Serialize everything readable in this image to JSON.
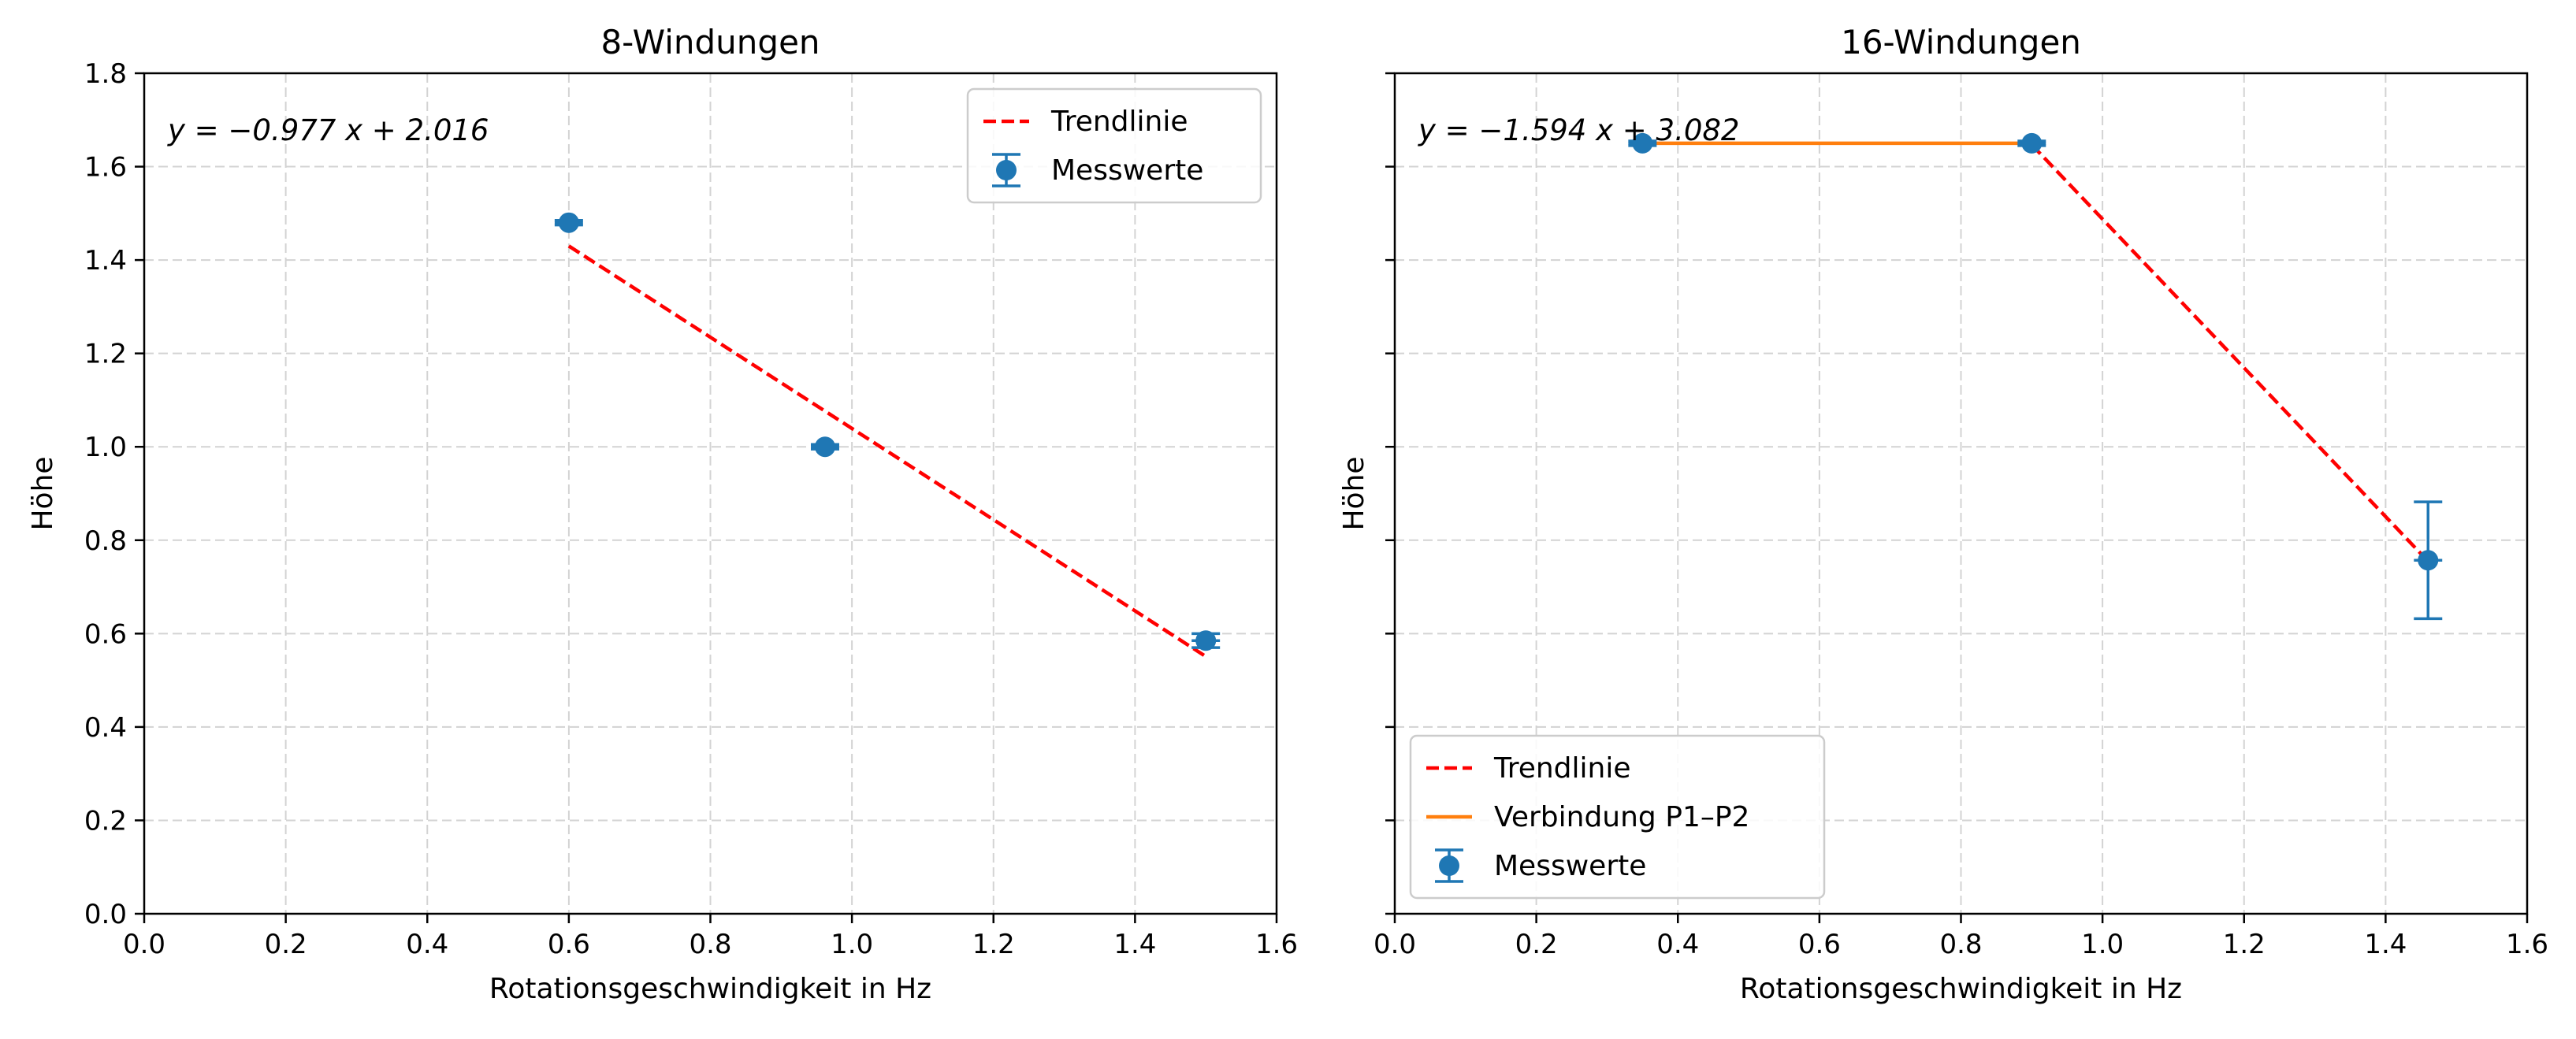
{
  "chart_data": [
    {
      "type": "scatter",
      "title": "8-Windungen",
      "xlabel": "Rotationsgeschwindigkeit in Hz",
      "ylabel": "Höhe",
      "xlim": [
        0.0,
        1.6
      ],
      "ylim": [
        0.0,
        1.8
      ],
      "xticks": [
        "0.0",
        "0.2",
        "0.4",
        "0.6",
        "0.8",
        "1.0",
        "1.2",
        "1.4",
        "1.6"
      ],
      "yticks": [
        "0.0",
        "0.2",
        "0.4",
        "0.6",
        "0.8",
        "1.0",
        "1.2",
        "1.4",
        "1.6",
        "1.8"
      ],
      "grid": true,
      "legend_position": "top-right",
      "annotation": "y = −0.977 x + 2.016",
      "series": [
        {
          "name": "Trendlinie",
          "kind": "line",
          "style": "dashed",
          "color": "#ff0000",
          "x": [
            0.6,
            1.5
          ],
          "y": [
            1.43,
            0.551
          ]
        },
        {
          "name": "Messwerte",
          "kind": "errorbar",
          "color": "#1f77b4",
          "x": [
            0.6,
            0.962,
            1.5
          ],
          "y": [
            1.48,
            1.0,
            0.585
          ],
          "xerr": [
            0.02,
            0.02,
            0.02
          ],
          "yerr": [
            0.005,
            0.005,
            0.015
          ]
        }
      ]
    },
    {
      "type": "scatter",
      "title": "16-Windungen",
      "xlabel": "Rotationsgeschwindigkeit in Hz",
      "ylabel": "Höhe",
      "xlim": [
        0.0,
        1.6
      ],
      "ylim": [
        0.0,
        1.8
      ],
      "xticks": [
        "0.0",
        "0.2",
        "0.4",
        "0.6",
        "0.8",
        "1.0",
        "1.2",
        "1.4",
        "1.6"
      ],
      "yticks": [
        "0.0",
        "0.2",
        "0.4",
        "0.6",
        "0.8",
        "1.0",
        "1.2",
        "1.4",
        "1.6",
        "1.8"
      ],
      "grid": true,
      "legend_position": "bottom-left",
      "annotation": "y = −1.594 x + 3.082",
      "series": [
        {
          "name": "Trendlinie",
          "kind": "line",
          "style": "dashed",
          "color": "#ff0000",
          "x": [
            0.9,
            1.46
          ],
          "y": [
            1.647,
            0.755
          ]
        },
        {
          "name": "Verbindung P1–P2",
          "kind": "line",
          "style": "solid",
          "color": "#ff7f0e",
          "x": [
            0.35,
            0.9
          ],
          "y": [
            1.65,
            1.65
          ]
        },
        {
          "name": "Messwerte",
          "kind": "errorbar",
          "color": "#1f77b4",
          "x": [
            0.35,
            0.9,
            1.46
          ],
          "y": [
            1.65,
            1.65,
            0.757
          ],
          "xerr": [
            0.02,
            0.02,
            0.02
          ],
          "yerr": [
            0.005,
            0.005,
            0.125
          ]
        }
      ]
    }
  ]
}
